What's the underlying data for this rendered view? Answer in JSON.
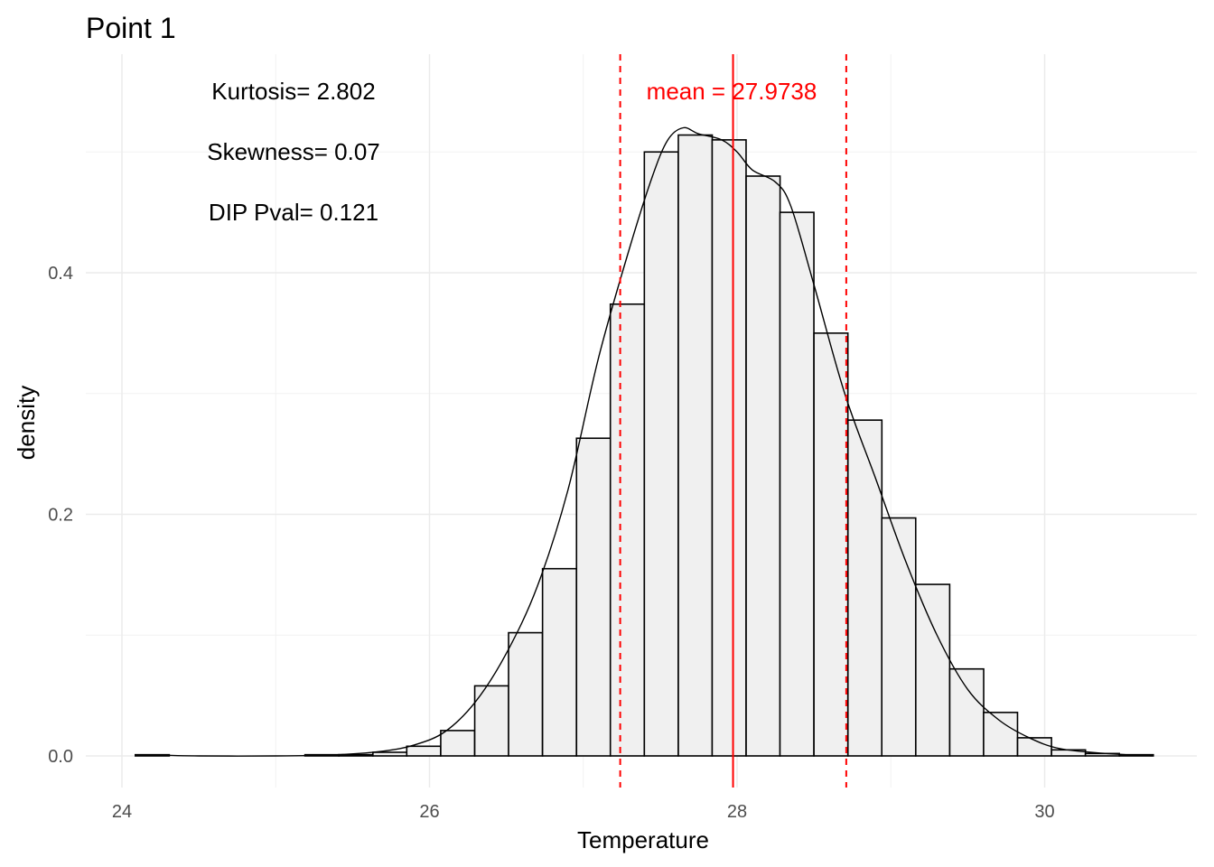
{
  "chart_data": {
    "type": "bar",
    "title": "Point 1",
    "xlabel": "Temperature",
    "ylabel": "density",
    "xlim": [
      24.1,
      30.7
    ],
    "ylim": [
      0,
      0.52
    ],
    "x_ticks": [
      24,
      26,
      28,
      30
    ],
    "x_tick_labels": [
      "24",
      "26",
      "28",
      "30"
    ],
    "y_ticks": [
      0.0,
      0.2,
      0.4
    ],
    "y_tick_labels": [
      "0.0",
      "0.2",
      "0.4"
    ],
    "grid": true,
    "bin_width": 0.2206,
    "bins": [
      {
        "start": 24.087,
        "value": 0.001
      },
      {
        "start": 24.308,
        "value": 0.0
      },
      {
        "start": 24.528,
        "value": 0.0
      },
      {
        "start": 24.749,
        "value": 0.0
      },
      {
        "start": 24.97,
        "value": 0.0
      },
      {
        "start": 25.19,
        "value": 0.001
      },
      {
        "start": 25.411,
        "value": 0.001
      },
      {
        "start": 25.632,
        "value": 0.003
      },
      {
        "start": 25.852,
        "value": 0.008
      },
      {
        "start": 26.073,
        "value": 0.021
      },
      {
        "start": 26.294,
        "value": 0.058
      },
      {
        "start": 26.514,
        "value": 0.102
      },
      {
        "start": 26.735,
        "value": 0.155
      },
      {
        "start": 26.956,
        "value": 0.263
      },
      {
        "start": 27.176,
        "value": 0.374
      },
      {
        "start": 27.397,
        "value": 0.5
      },
      {
        "start": 27.618,
        "value": 0.514
      },
      {
        "start": 27.838,
        "value": 0.51
      },
      {
        "start": 28.059,
        "value": 0.48
      },
      {
        "start": 28.279,
        "value": 0.45
      },
      {
        "start": 28.5,
        "value": 0.35
      },
      {
        "start": 28.721,
        "value": 0.278
      },
      {
        "start": 28.941,
        "value": 0.197
      },
      {
        "start": 29.162,
        "value": 0.142
      },
      {
        "start": 29.383,
        "value": 0.072
      },
      {
        "start": 29.603,
        "value": 0.036
      },
      {
        "start": 29.824,
        "value": 0.015
      },
      {
        "start": 30.045,
        "value": 0.005
      },
      {
        "start": 30.265,
        "value": 0.002
      },
      {
        "start": 30.486,
        "value": 0.001
      }
    ],
    "density_curve": {
      "x": [
        24.1,
        24.5,
        25.0,
        25.4,
        25.7,
        25.9,
        26.1,
        26.3,
        26.5,
        26.7,
        26.9,
        27.1,
        27.3,
        27.45,
        27.55,
        27.65,
        27.75,
        27.9,
        28.0,
        28.1,
        28.25,
        28.35,
        28.5,
        28.7,
        28.9,
        29.1,
        29.3,
        29.5,
        29.7,
        29.9,
        30.1,
        30.4,
        30.7
      ],
      "y": [
        0.001,
        0.0,
        0.0,
        0.001,
        0.004,
        0.009,
        0.02,
        0.045,
        0.085,
        0.14,
        0.22,
        0.33,
        0.42,
        0.48,
        0.51,
        0.52,
        0.515,
        0.51,
        0.5,
        0.485,
        0.475,
        0.455,
        0.39,
        0.3,
        0.23,
        0.16,
        0.1,
        0.055,
        0.03,
        0.015,
        0.006,
        0.002,
        0.0
      ]
    },
    "mean": 27.9738,
    "mean_label": "mean = 27.9738",
    "sd_lines": [
      27.24,
      28.71
    ],
    "line_color": "#ff0000",
    "bar_fill": "#f0f0f0",
    "bar_stroke": "#000000",
    "annotations": [
      "Kurtosis= 2.802",
      "Skewness= 0.07",
      "DIP Pval= 0.121"
    ]
  }
}
